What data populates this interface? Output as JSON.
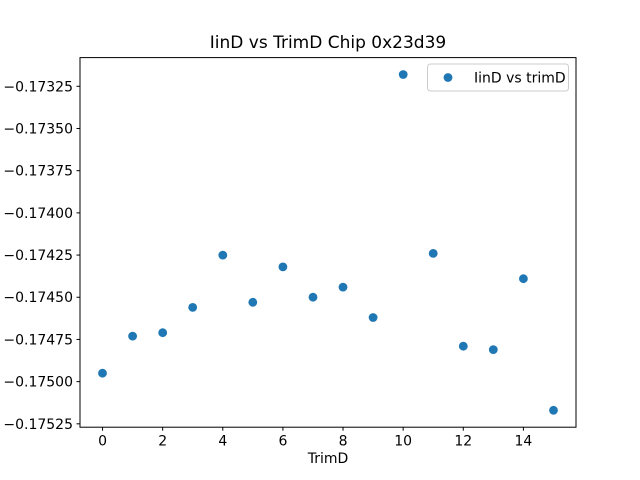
{
  "figure_title": "IinD vs TrimD Chip 0x23d39",
  "chart_data": {
    "type": "scatter",
    "title": "IinD vs TrimD Chip 0x23d39",
    "xlabel": "TrimD",
    "ylabel": "",
    "grid": false,
    "marker": "circle",
    "marker_color": "#1f77b4",
    "series": [
      {
        "name": "IinD vs trimD",
        "x": [
          0,
          1,
          2,
          3,
          4,
          5,
          6,
          7,
          8,
          9,
          10,
          11,
          12,
          13,
          14,
          15
        ],
        "y": [
          -0.17495,
          -0.17473,
          -0.17471,
          -0.17456,
          -0.17425,
          -0.17453,
          -0.17432,
          -0.1745,
          -0.17444,
          -0.17462,
          -0.17318,
          -0.17424,
          -0.17479,
          -0.17481,
          -0.17439,
          -0.17517
        ]
      }
    ],
    "xlim": [
      -0.75,
      15.75
    ],
    "ylim": [
      -0.17527,
      -0.17308
    ],
    "xticks": [
      0,
      2,
      4,
      6,
      8,
      10,
      12,
      14
    ],
    "xtick_labels": [
      "0",
      "2",
      "4",
      "6",
      "8",
      "10",
      "12",
      "14"
    ],
    "yticks": [
      -0.17325,
      -0.1735,
      -0.17375,
      -0.174,
      -0.17425,
      -0.1745,
      -0.17475,
      -0.175,
      -0.17525
    ],
    "ytick_labels": [
      "−0.17325",
      "−0.17350",
      "−0.17375",
      "−0.17400",
      "−0.17425",
      "−0.17450",
      "−0.17475",
      "−0.17500",
      "−0.17525"
    ],
    "legend": {
      "position": "upper right",
      "entries": [
        {
          "label": "IinD vs trimD",
          "marker": "circle",
          "color": "#1f77b4"
        }
      ]
    }
  },
  "colors": {
    "marker": "#1f77b4",
    "spine": "#000000",
    "legend_border": "#cccccc",
    "background": "#ffffff"
  }
}
